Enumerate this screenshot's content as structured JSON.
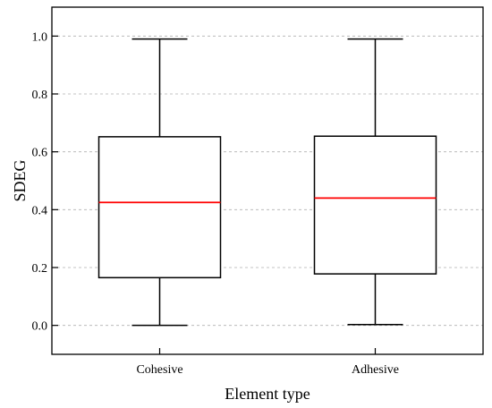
{
  "chart_data": {
    "type": "box",
    "title": "",
    "xlabel": "Element type",
    "ylabel": "SDEG",
    "ylim": [
      -0.1,
      1.1
    ],
    "yticks": [
      "0.0",
      "0.2",
      "0.4",
      "0.6",
      "0.8",
      "1.0"
    ],
    "grid": true,
    "categories": [
      "Cohesive",
      "Adhesive"
    ],
    "boxes": [
      {
        "category": "Cohesive",
        "min": 0.0,
        "q1": 0.165,
        "median": 0.425,
        "q3": 0.652,
        "max": 0.99
      },
      {
        "category": "Adhesive",
        "min": 0.003,
        "q1": 0.178,
        "median": 0.44,
        "q3": 0.654,
        "max": 0.99
      }
    ],
    "colors": {
      "box": "#000000",
      "median": "#ff0000",
      "grid": "#b0b0b0"
    }
  }
}
